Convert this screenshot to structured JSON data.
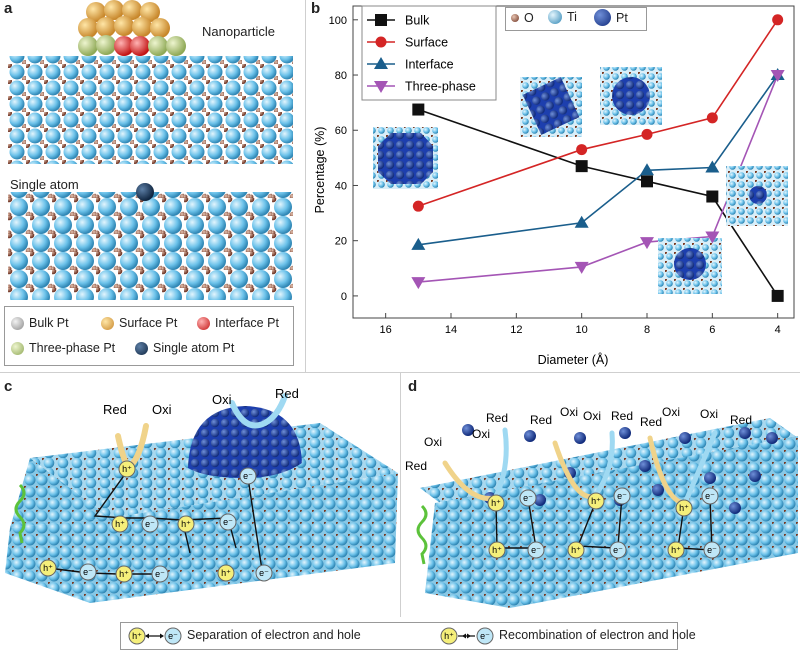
{
  "panels": {
    "a": {
      "letter": "a",
      "nanoparticle_label": "Nanoparticle",
      "single_atom_label": "Single atom",
      "legend": [
        {
          "label": "Bulk Pt",
          "color": "#a9a9a9"
        },
        {
          "label": "Surface Pt",
          "color": "#e8a83a"
        },
        {
          "label": "Interface Pt",
          "color": "#e02626"
        },
        {
          "label": "Three-phase Pt",
          "color": "#b9cf7a"
        },
        {
          "label": "Single atom Pt",
          "color": "#1c3d6b"
        }
      ]
    },
    "b": {
      "letter": "b",
      "element_legend": [
        {
          "label": "O",
          "color": "#8a4a2a"
        },
        {
          "label": "Ti",
          "color": "#7ecbec"
        },
        {
          "label": "Pt",
          "color": "#1f3fa8"
        }
      ]
    },
    "c": {
      "letter": "c"
    },
    "d": {
      "letter": "d"
    }
  },
  "chart_data": {
    "type": "line",
    "xlabel": "Diameter (Å)",
    "ylabel": "Percentage (%)",
    "xlim": [
      17,
      3.5
    ],
    "ylim": [
      -8,
      105
    ],
    "xticks": [
      16,
      14,
      12,
      10,
      8,
      6,
      4
    ],
    "yticks": [
      0,
      20,
      40,
      60,
      80,
      100
    ],
    "x": [
      15,
      10,
      8,
      6,
      4
    ],
    "legend_position": "top-left",
    "series": [
      {
        "name": "Bulk",
        "color": "#111111",
        "marker": "square",
        "values": [
          67.5,
          47,
          41.5,
          36,
          0
        ]
      },
      {
        "name": "Surface",
        "color": "#d42525",
        "marker": "circle",
        "values": [
          32.5,
          53,
          58.5,
          64.5,
          100
        ]
      },
      {
        "name": "Interface",
        "color": "#1a5e8c",
        "marker": "triangle-up",
        "values": [
          18.5,
          26.5,
          45.5,
          46.5,
          80
        ]
      },
      {
        "name": "Three-phase",
        "color": "#a455b5",
        "marker": "triangle-down",
        "values": [
          5,
          10.5,
          19.5,
          21.5,
          80
        ]
      }
    ]
  },
  "photocatalysis": {
    "c_labels": [
      "Red",
      "Oxi",
      "Oxi",
      "Red"
    ],
    "d_labels": [
      "Oxi",
      "Red",
      "Red",
      "Oxi",
      "Red",
      "Oxi",
      "Oxi",
      "Red",
      "Red",
      "Oxi",
      "Oxi",
      "Red"
    ],
    "hole": "h",
    "hole_sup": "+",
    "electron": "e",
    "electron_sup": "−"
  },
  "bottom_legend": {
    "separation": "Separation of electron and hole",
    "recombination": "Recombination of electron and hole"
  }
}
